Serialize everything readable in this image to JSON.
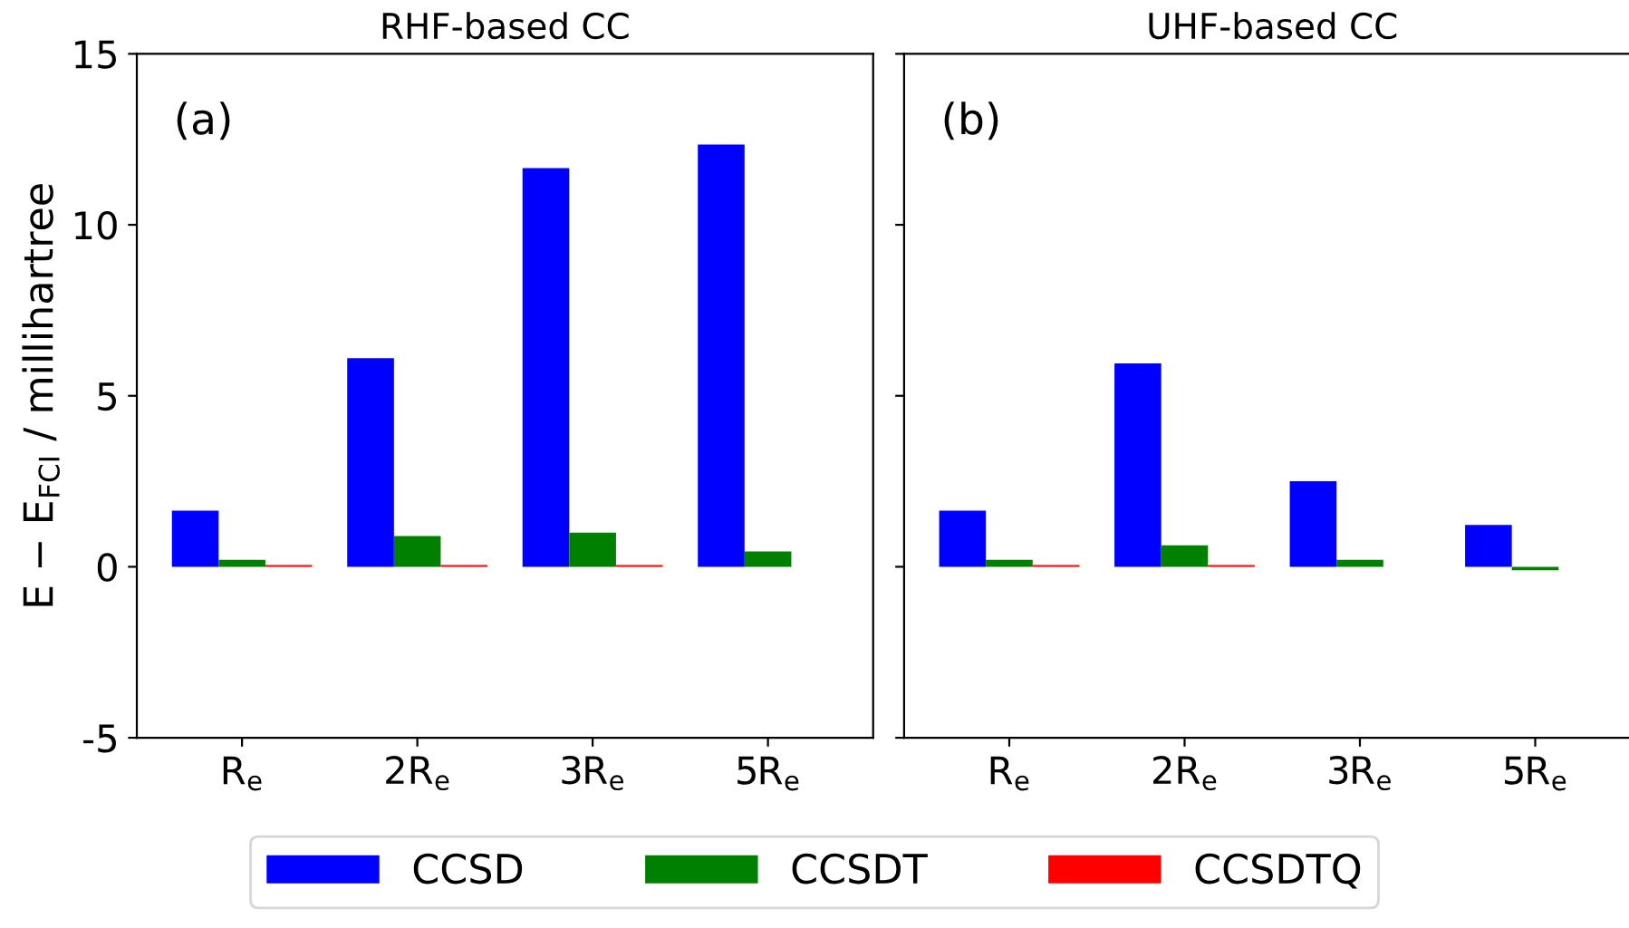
{
  "chart_data": [
    {
      "type": "bar",
      "title": "RHF-based CC",
      "ylabel": "E − E$_{FCI}$ / millihartree",
      "annotations": [
        "(a)"
      ],
      "categories": [
        "R$_{e}$",
        "2R$_{e}$",
        "3R$_{e}$",
        "5R$_{e}$"
      ],
      "series": [
        {
          "name": "CCSD",
          "color": "#0000ff",
          "values": [
            1.64,
            6.1,
            11.66,
            12.35
          ]
        },
        {
          "name": "CCSDT",
          "color": "#008000",
          "values": [
            0.2,
            0.9,
            1.0,
            0.45
          ]
        },
        {
          "name": "CCSDTQ",
          "color": "#ff0000",
          "values": [
            0.05,
            0.05,
            0.05,
            null
          ]
        }
      ],
      "ylim": [
        -5,
        15
      ],
      "yticks": [
        -5,
        0,
        5,
        10,
        15
      ],
      "legend": "bottom"
    },
    {
      "type": "bar",
      "title": "UHF-based CC",
      "annotations": [
        "(b)"
      ],
      "categories": [
        "R$_{e}$",
        "2R$_{e}$",
        "3R$_{e}$",
        "5R$_{e}$"
      ],
      "series": [
        {
          "color": "#0000ff",
          "values": [
            1.64,
            5.95,
            2.5,
            1.22
          ]
        },
        {
          "color": "#008000",
          "values": [
            0.2,
            0.63,
            0.2,
            -0.1
          ]
        },
        {
          "color": "#ff0000",
          "values": [
            0.05,
            0.05,
            null,
            null
          ]
        }
      ],
      "ylim": [
        -5,
        15
      ],
      "yticks": [
        -5,
        0,
        5,
        10,
        15
      ],
      "tick_labels": "x"
    }
  ]
}
